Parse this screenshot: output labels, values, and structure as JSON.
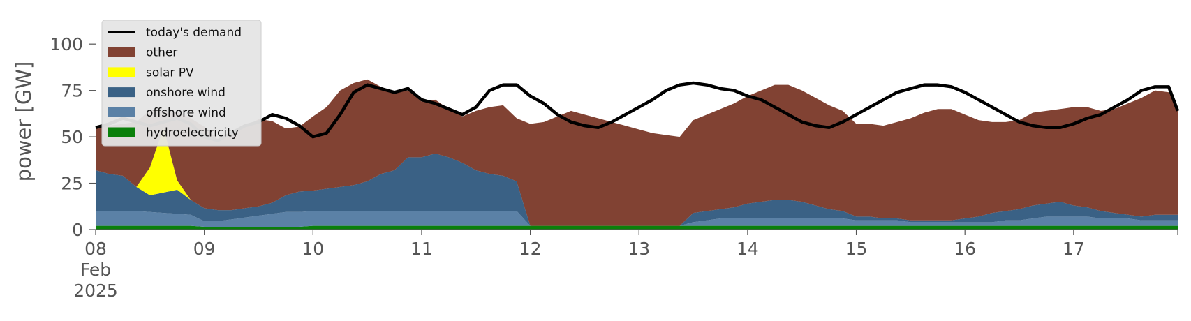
{
  "chart_data": {
    "type": "area",
    "ylabel": "power [GW]",
    "xlabel": "",
    "ylim": [
      0,
      117
    ],
    "xlim": [
      "2025-02-08",
      "2025-02-17 23:00"
    ],
    "x_tick_labels": [
      "08\nFeb\n2025",
      "09",
      "10",
      "11",
      "12",
      "13",
      "14",
      "15",
      "16",
      "17"
    ],
    "y_ticks": [
      0,
      25,
      50,
      75,
      100
    ],
    "y_tick_labels": [
      "0",
      "25",
      "50",
      "75",
      "100"
    ],
    "legend": {
      "placement": "top-left",
      "entries": [
        "today's demand",
        "other",
        "solar PV",
        "onshore wind",
        "offshore wind",
        "hydroelectricity"
      ]
    },
    "grid": false,
    "stack_order": [
      "hydroelectricity",
      "offshore wind",
      "onshore wind",
      "solar PV",
      "other"
    ],
    "colors": {
      "today's demand": "#000000",
      "other": "#814233",
      "solar PV": "#ffff00",
      "onshore wind": "#3a6185",
      "offshore wind": "#5b81a6",
      "hydroelectricity": "#0a800a"
    },
    "x_hours": [
      0,
      3,
      6,
      9,
      12,
      15,
      18,
      21,
      24,
      27,
      30,
      33,
      36,
      39,
      42,
      45,
      48,
      51,
      54,
      57,
      60,
      63,
      66,
      69,
      72,
      75,
      78,
      81,
      84,
      87,
      90,
      93,
      96,
      99,
      102,
      105,
      108,
      111,
      114,
      117,
      120,
      123,
      126,
      129,
      132,
      135,
      138,
      141,
      144,
      147,
      150,
      153,
      156,
      159,
      162,
      165,
      168,
      171,
      174,
      177,
      180,
      183,
      186,
      189,
      192,
      195,
      198,
      201,
      204,
      207,
      210,
      213,
      216,
      219,
      222,
      225,
      228,
      231,
      234,
      237,
      239
    ],
    "series": [
      {
        "name": "hydroelectricity",
        "values": [
          2,
          2,
          2,
          2,
          2,
          2,
          2,
          2,
          1.5,
          1.5,
          1.5,
          1.5,
          1.5,
          1.5,
          1.5,
          1.5,
          2,
          2,
          2,
          2,
          2,
          2,
          2,
          2,
          2,
          2,
          2,
          2,
          2,
          2,
          2,
          2,
          2,
          2,
          2,
          2,
          2,
          2,
          2,
          2,
          2,
          2,
          2,
          2,
          2,
          2,
          2,
          2,
          2,
          2,
          2,
          2,
          2,
          2,
          2,
          2,
          2,
          2,
          2,
          2,
          2,
          2,
          2,
          2,
          2,
          2,
          2,
          2,
          2,
          2,
          2,
          2,
          2,
          2,
          2,
          2,
          2,
          2,
          2,
          2,
          2
        ]
      },
      {
        "name": "offshore wind",
        "values": [
          8,
          8,
          8,
          8,
          7.5,
          7,
          6.5,
          6,
          3,
          3,
          4,
          5,
          6,
          7,
          8,
          8,
          8,
          8,
          8,
          8,
          8,
          8,
          8,
          8,
          8,
          8,
          8,
          8,
          8,
          8,
          8,
          8,
          0,
          0,
          0,
          0,
          0,
          0,
          0,
          0,
          0,
          0,
          0,
          0,
          2,
          3,
          4,
          4,
          4,
          4,
          4,
          4,
          4,
          4,
          4,
          4,
          3,
          3,
          3,
          3,
          2,
          2,
          2,
          2,
          2,
          2,
          2,
          3,
          3,
          4,
          5,
          5,
          5,
          5,
          4,
          4,
          4,
          3,
          3,
          3,
          3
        ]
      },
      {
        "name": "onshore wind",
        "values": [
          22,
          20,
          19,
          13,
          9,
          11,
          13,
          8,
          7,
          6,
          5,
          5,
          5,
          6,
          9,
          11,
          11,
          12,
          13,
          14,
          16,
          20,
          22,
          29,
          29,
          31,
          29,
          26,
          22,
          20,
          19,
          16,
          0,
          0,
          0,
          0,
          0,
          0,
          0,
          0,
          0,
          0,
          0,
          0,
          5,
          5,
          5,
          6,
          8,
          9,
          10,
          10,
          9,
          7,
          5,
          4,
          2,
          2,
          1,
          1,
          1,
          1,
          1,
          1,
          2,
          3,
          5,
          5,
          6,
          7,
          7,
          8,
          6,
          5,
          4,
          3,
          2,
          2,
          3,
          3,
          3
        ]
      },
      {
        "name": "solar PV",
        "values": [
          0,
          0,
          0,
          0,
          15,
          35,
          5,
          0,
          0,
          0,
          0,
          0,
          0,
          0,
          0,
          0,
          0,
          0,
          0,
          0,
          0,
          0,
          0,
          0,
          0,
          0,
          0,
          0,
          0,
          0,
          0,
          0,
          0,
          0,
          0,
          0,
          0,
          0,
          0,
          0,
          0,
          0,
          0,
          0,
          0,
          0,
          0,
          0,
          0,
          0,
          0,
          0,
          0,
          0,
          0,
          0,
          0,
          0,
          0,
          0,
          0,
          0,
          0,
          0,
          0,
          0,
          0,
          0,
          0,
          0,
          0,
          0,
          0,
          0,
          0,
          0,
          0,
          0,
          0,
          0,
          0
        ]
      },
      {
        "name": "other",
        "values": [
          24,
          26,
          28,
          35,
          31,
          9,
          37,
          44,
          44,
          38,
          41,
          44,
          47,
          44,
          36,
          35,
          40,
          44,
          52,
          55,
          55,
          47,
          42,
          36,
          30,
          29,
          26,
          25,
          32,
          36,
          38,
          34,
          55,
          56,
          59,
          62,
          60,
          58,
          56,
          54,
          52,
          50,
          49,
          48,
          50,
          52,
          54,
          56,
          58,
          60,
          62,
          62,
          60,
          58,
          56,
          54,
          50,
          50,
          50,
          52,
          55,
          58,
          60,
          60,
          56,
          52,
          49,
          48,
          48,
          50,
          50,
          50,
          53,
          54,
          54,
          56,
          60,
          64,
          67,
          66,
          58
        ]
      },
      {
        "name": "today's demand",
        "values": [
          55,
          57,
          60,
          58,
          56,
          58,
          60,
          57,
          50,
          48,
          52,
          56,
          58,
          62,
          60,
          56,
          50,
          52,
          62,
          74,
          78,
          76,
          74,
          76,
          70,
          68,
          65,
          62,
          66,
          75,
          78,
          78,
          72,
          68,
          62,
          58,
          56,
          55,
          58,
          62,
          66,
          70,
          75,
          78,
          79,
          78,
          76,
          75,
          72,
          70,
          66,
          62,
          58,
          56,
          55,
          58,
          62,
          66,
          70,
          74,
          76,
          78,
          78,
          77,
          74,
          70,
          66,
          62,
          58,
          56,
          55,
          55,
          57,
          60,
          62,
          66,
          70,
          75,
          77,
          77,
          64
        ]
      }
    ]
  }
}
